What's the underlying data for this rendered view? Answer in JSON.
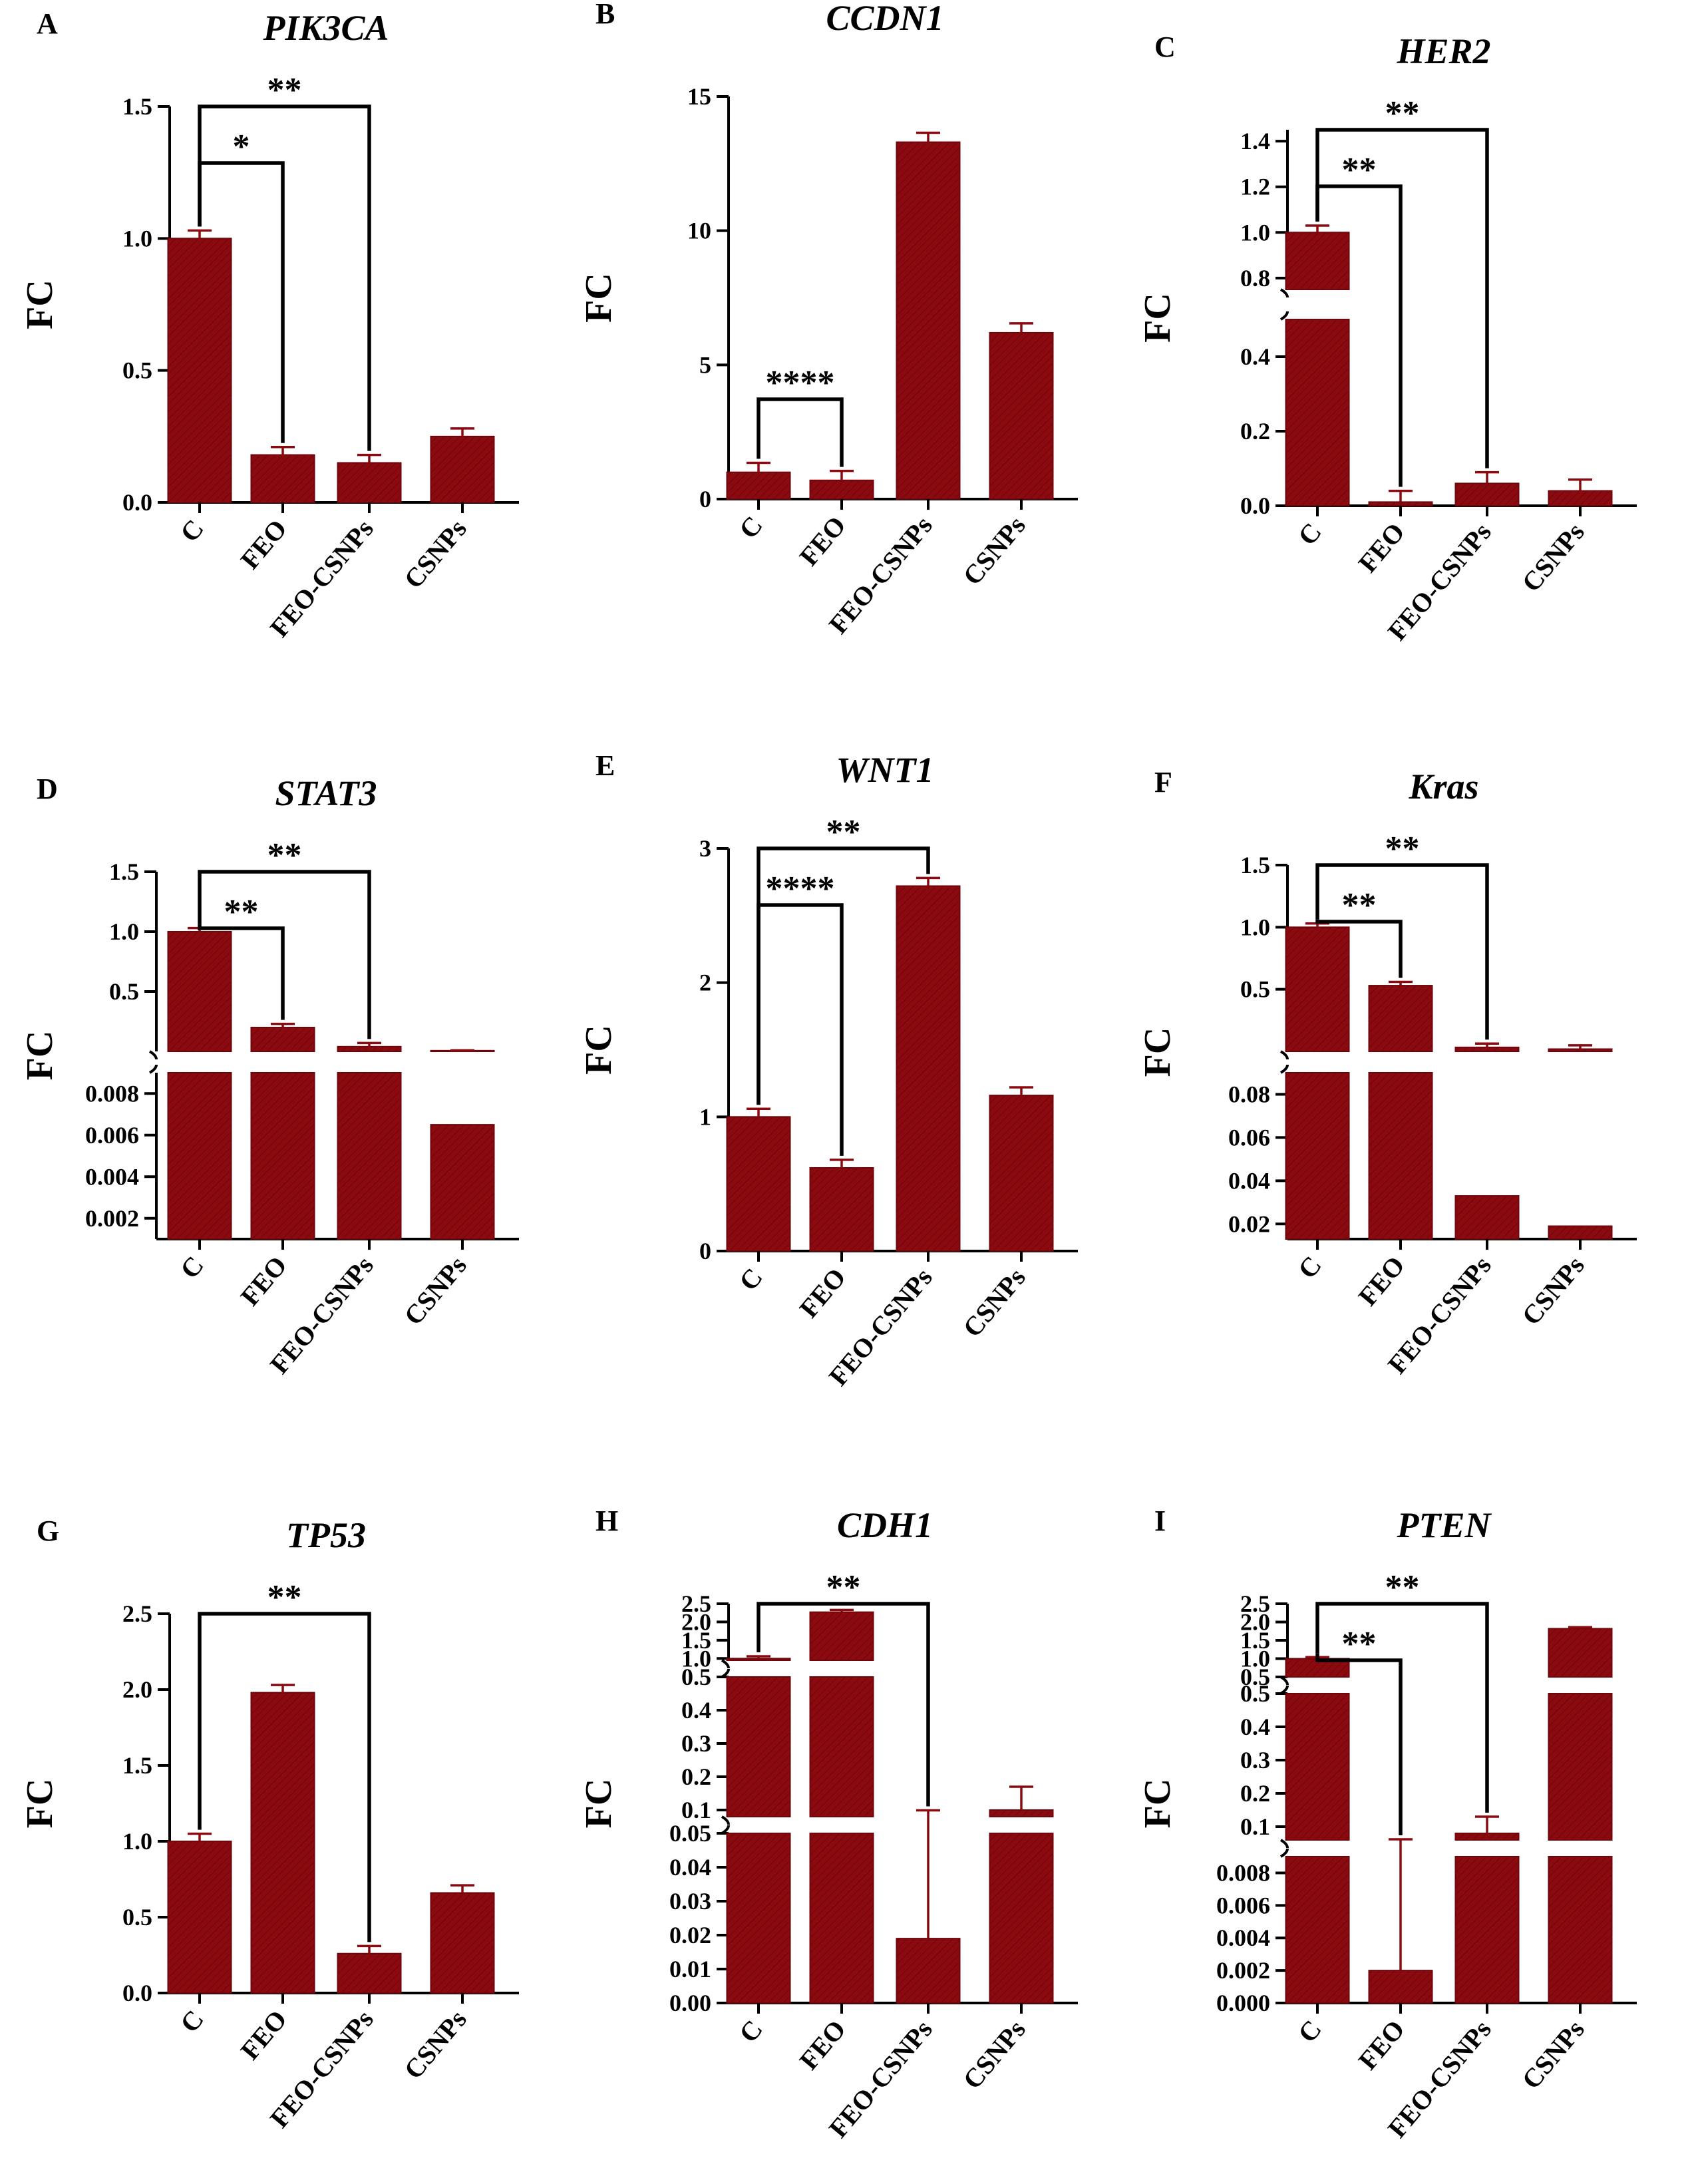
{
  "bar_color": "#8B0A10",
  "bar_stroke": "#6E060B",
  "chart_data": [
    {
      "panel": "A",
      "type": "bar",
      "title": "PIK3CA",
      "ylabel": "FC",
      "categories": [
        "C",
        "FEO",
        "FEO-CSNPs",
        "CSNPs"
      ],
      "values": [
        1.0,
        0.18,
        0.15,
        0.25
      ],
      "errors": [
        0.03,
        0.03,
        0.03,
        0.03
      ],
      "segments": [
        {
          "range": [
            0,
            1.5
          ],
          "ticks": [
            0.0,
            0.5,
            1.0,
            1.5
          ],
          "tick_labels": [
            "0.0",
            "0.5",
            "1.0",
            "1.5"
          ]
        }
      ],
      "significance": [
        {
          "from": 0,
          "to": 1,
          "label": "*"
        },
        {
          "from": 0,
          "to": 2,
          "label": "**"
        }
      ]
    },
    {
      "panel": "B",
      "type": "bar",
      "title": "CCDN1",
      "ylabel": "FC",
      "categories": [
        "C",
        "FEO",
        "FEO-CSNPs",
        "CSNPs"
      ],
      "values": [
        1.0,
        0.7,
        13.3,
        6.2
      ],
      "errors": [
        0.35,
        0.35,
        0.35,
        0.35
      ],
      "segments": [
        {
          "range": [
            0,
            15
          ],
          "ticks": [
            0,
            5,
            10,
            15
          ],
          "tick_labels": [
            "0",
            "5",
            "10",
            "15"
          ]
        }
      ],
      "significance": [
        {
          "from": 0,
          "to": 1,
          "label": "****"
        }
      ]
    },
    {
      "panel": "C",
      "type": "bar",
      "title": "HER2",
      "ylabel": "FC",
      "categories": [
        "C",
        "FEO",
        "FEO-CSNPs",
        "CSNPs"
      ],
      "values": [
        1.0,
        0.01,
        0.06,
        0.04
      ],
      "errors": [
        0.03,
        0.03,
        0.03,
        0.03
      ],
      "segments": [
        {
          "range": [
            0,
            0.5
          ],
          "ticks": [
            0.0,
            0.2,
            0.4
          ],
          "tick_labels": [
            "0.0",
            "0.2",
            "0.4"
          ]
        },
        {
          "range": [
            0.75,
            1.45
          ],
          "ticks": [
            0.8,
            1.0,
            1.2,
            1.4
          ],
          "tick_labels": [
            "0.8",
            "1.0",
            "1.2",
            "1.4"
          ]
        }
      ],
      "significance": [
        {
          "from": 0,
          "to": 1,
          "label": "**"
        },
        {
          "from": 0,
          "to": 2,
          "label": "**"
        }
      ]
    },
    {
      "panel": "D",
      "type": "bar",
      "title": "STAT3",
      "ylabel": "FC",
      "categories": [
        "C",
        "FEO",
        "FEO-CSNPs",
        "CSNPs"
      ],
      "values": [
        1.0,
        0.2,
        0.04,
        0.0065
      ],
      "errors": [
        0.03,
        0.03,
        0.03,
        0.0025
      ],
      "segments": [
        {
          "range": [
            0.001,
            0.009
          ],
          "ticks": [
            0.002,
            0.004,
            0.006,
            0.008
          ],
          "tick_labels": [
            "0.002",
            "0.004",
            "0.006",
            "0.008"
          ]
        },
        {
          "range": [
            0.0,
            1.5
          ],
          "ticks": [
            0.5,
            1.0,
            1.5
          ],
          "tick_labels": [
            "0.5",
            "1.0",
            "1.5"
          ]
        }
      ],
      "significance": [
        {
          "from": 0,
          "to": 1,
          "label": "**"
        },
        {
          "from": 0,
          "to": 2,
          "label": "**"
        }
      ]
    },
    {
      "panel": "E",
      "type": "bar",
      "title": "WNT1",
      "ylabel": "FC",
      "categories": [
        "C",
        "FEO",
        "FEO-CSNPs",
        "CSNPs"
      ],
      "values": [
        1.0,
        0.62,
        2.72,
        1.16
      ],
      "errors": [
        0.06,
        0.06,
        0.06,
        0.06
      ],
      "segments": [
        {
          "range": [
            0,
            3
          ],
          "ticks": [
            0,
            1,
            2,
            3
          ],
          "tick_labels": [
            "0",
            "1",
            "2",
            "3"
          ]
        }
      ],
      "significance": [
        {
          "from": 0,
          "to": 1,
          "label": "****"
        },
        {
          "from": 0,
          "to": 2,
          "label": "**"
        }
      ]
    },
    {
      "panel": "F",
      "type": "bar",
      "title": "Kras",
      "ylabel": "FC",
      "categories": [
        "C",
        "FEO",
        "FEO-CSNPs",
        "CSNPs"
      ],
      "values": [
        1.0,
        0.53,
        0.033,
        0.019
      ],
      "errors": [
        0.03,
        0.03,
        0.03,
        0.03
      ],
      "segments": [
        {
          "range": [
            0.013,
            0.09
          ],
          "ticks": [
            0.02,
            0.04,
            0.06,
            0.08
          ],
          "tick_labels": [
            "0.02",
            "0.04",
            "0.06",
            "0.08"
          ]
        },
        {
          "range": [
            0.0,
            1.5
          ],
          "ticks": [
            0.5,
            1.0,
            1.5
          ],
          "tick_labels": [
            "0.5",
            "1.0",
            "1.5"
          ]
        }
      ],
      "significance": [
        {
          "from": 0,
          "to": 1,
          "label": "**"
        },
        {
          "from": 0,
          "to": 2,
          "label": "**"
        }
      ]
    },
    {
      "panel": "G",
      "type": "bar",
      "title": "TP53",
      "ylabel": "FC",
      "categories": [
        "C",
        "FEO",
        "FEO-CSNPs",
        "CSNPs"
      ],
      "values": [
        1.0,
        1.98,
        0.26,
        0.66
      ],
      "errors": [
        0.05,
        0.05,
        0.05,
        0.05
      ],
      "segments": [
        {
          "range": [
            0,
            2.5
          ],
          "ticks": [
            0.0,
            0.5,
            1.0,
            1.5,
            2.0,
            2.5
          ],
          "tick_labels": [
            "0.0",
            "0.5",
            "1.0",
            "1.5",
            "2.0",
            "2.5"
          ]
        }
      ],
      "significance": [
        {
          "from": 0,
          "to": 2,
          "label": "**"
        }
      ]
    },
    {
      "panel": "H",
      "type": "bar",
      "title": "CDH1",
      "ylabel": "FC",
      "categories": [
        "C",
        "FEO",
        "FEO-CSNPs",
        "CSNPs"
      ],
      "values": [
        1.0,
        2.27,
        0.019,
        0.1
      ],
      "errors": [
        0.06,
        0.06,
        0.08,
        0.07
      ],
      "segments": [
        {
          "range": [
            0,
            0.05
          ],
          "ticks": [
            0.0,
            0.01,
            0.02,
            0.03,
            0.04,
            0.05
          ],
          "tick_labels": [
            "0.00",
            "0.01",
            "0.02",
            "0.03",
            "0.04",
            "0.05"
          ]
        },
        {
          "range": [
            0.08,
            0.5
          ],
          "ticks": [
            0.1,
            0.2,
            0.3,
            0.4,
            0.5
          ],
          "tick_labels": [
            "0.1",
            "0.2",
            "0.3",
            "0.4",
            "0.5"
          ]
        },
        {
          "range": [
            0.95,
            2.5
          ],
          "ticks": [
            1.0,
            1.5,
            2.0,
            2.5
          ],
          "tick_labels": [
            "1.0",
            "1.5",
            "2.0",
            "2.5"
          ]
        }
      ],
      "significance": [
        {
          "from": 0,
          "to": 2,
          "label": "**"
        }
      ]
    },
    {
      "panel": "I",
      "type": "bar",
      "title": "PTEN",
      "ylabel": "FC",
      "categories": [
        "C",
        "FEO",
        "FEO-CSNPs",
        "CSNPs"
      ],
      "values": [
        1.0,
        0.002,
        0.08,
        1.82
      ],
      "errors": [
        0.04,
        0.06,
        0.05,
        0.04
      ],
      "segments": [
        {
          "range": [
            0,
            0.009
          ],
          "ticks": [
            0.0,
            0.002,
            0.004,
            0.006,
            0.008
          ],
          "tick_labels": [
            "0.000",
            "0.002",
            "0.004",
            "0.006",
            "0.008"
          ]
        },
        {
          "range": [
            0.06,
            0.5
          ],
          "ticks": [
            0.1,
            0.2,
            0.3,
            0.4,
            0.5
          ],
          "tick_labels": [
            "0.1",
            "0.2",
            "0.3",
            "0.4",
            "0.5"
          ]
        },
        {
          "range": [
            0.5,
            2.5
          ],
          "ticks": [
            0.5,
            1.0,
            1.5,
            2.0,
            2.5
          ],
          "tick_labels": [
            "0.5",
            "1.0",
            "1.5",
            "2.0",
            "2.5"
          ]
        }
      ],
      "significance": [
        {
          "from": 0,
          "to": 1,
          "label": "**"
        },
        {
          "from": 0,
          "to": 2,
          "label": "**"
        }
      ]
    }
  ]
}
